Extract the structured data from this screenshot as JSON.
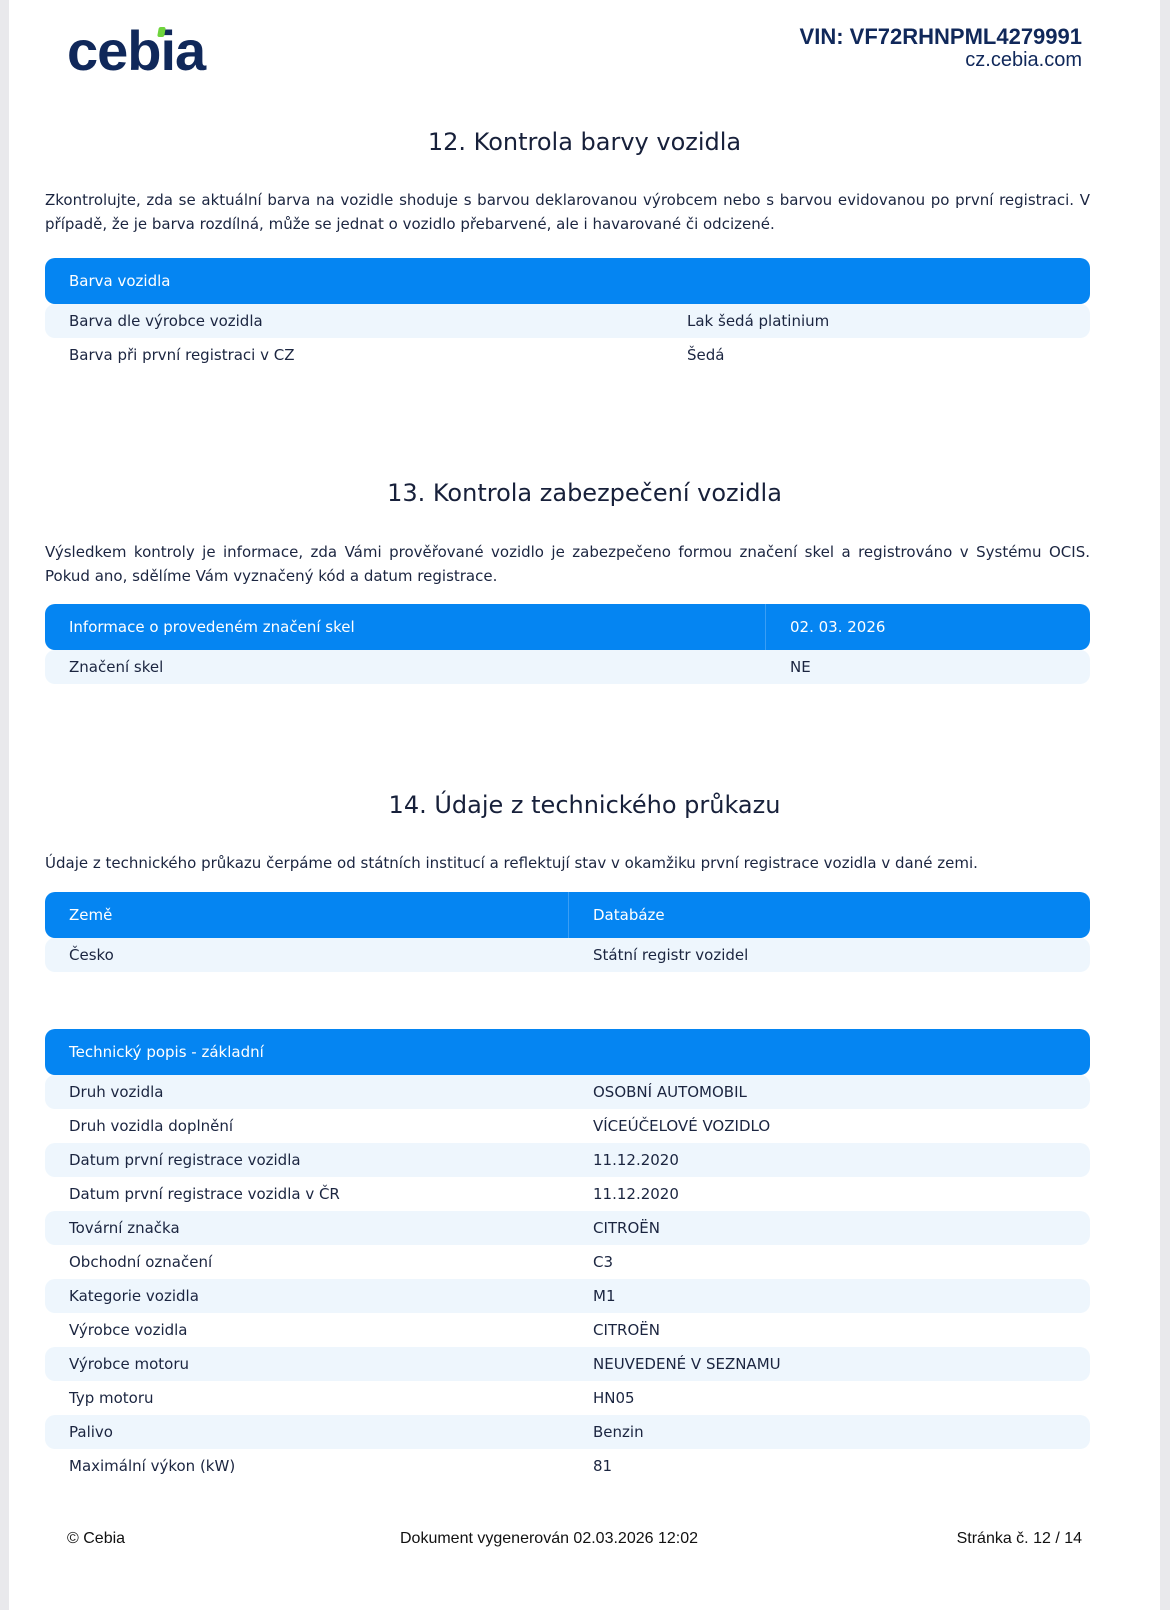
{
  "header": {
    "logo": "cebia",
    "vin": "VIN: VF72RHNPML4279991",
    "website": "cz.cebia.com"
  },
  "section12": {
    "title": "12. Kontrola barvy vozidla",
    "text": "Zkontrolujte, zda se aktuální barva na vozidle shoduje s barvou deklarovanou výrobcem nebo s barvou evidovanou po první registraci. V případě, že je barva rozdílná, může se jednat o vozidlo přebarvené, ale i havarované či odcizené.",
    "table": {
      "header": "Barva vozidla",
      "rows": [
        {
          "label": "Barva dle výrobce vozidla",
          "value": "Lak šedá platinium"
        },
        {
          "label": "Barva při první registraci v CZ",
          "value": "Šedá"
        }
      ]
    }
  },
  "section13": {
    "title": "13. Kontrola zabezpečení vozidla",
    "text": "Výsledkem kontroly je informace, zda Vámi prověřované vozidlo je zabezpečeno formou značení skel a registrováno v Systému OCIS. Pokud ano, sdělíme Vám vyznačený kód a datum registrace.",
    "table": {
      "header": "Informace o provedeném značení skel",
      "header_value": "02. 03. 2026",
      "rows": [
        {
          "label": "Značení skel",
          "value": "NE"
        }
      ]
    }
  },
  "section14": {
    "title": "14. Údaje z technického průkazu",
    "text": "Údaje z technického průkazu čerpáme od státních institucí a reflektují stav v okamžiku první registrace vozidla v dané zemi.",
    "source_table": {
      "headers": [
        "Země",
        "Databáze"
      ],
      "rows": [
        {
          "label": "Česko",
          "value": "Státní registr vozidel"
        }
      ]
    },
    "tech_table": {
      "header": "Technický popis - základní",
      "rows": [
        {
          "label": "Druh vozidla",
          "value": "OSOBNÍ AUTOMOBIL"
        },
        {
          "label": "Druh vozidla doplnění",
          "value": "VÍCEÚČELOVÉ VOZIDLO"
        },
        {
          "label": "Datum první registrace vozidla",
          "value": "11.12.2020"
        },
        {
          "label": "Datum první registrace vozidla v ČR",
          "value": "11.12.2020"
        },
        {
          "label": "Tovární značka",
          "value": "CITROËN"
        },
        {
          "label": "Obchodní označení",
          "value": "C3"
        },
        {
          "label": "Kategorie vozidla",
          "value": "M1"
        },
        {
          "label": "Výrobce vozidla",
          "value": "CITROËN"
        },
        {
          "label": "Výrobce motoru",
          "value": "NEUVEDENÉ V SEZNAMU"
        },
        {
          "label": "Typ motoru",
          "value": "HN05"
        },
        {
          "label": "Palivo",
          "value": "Benzin"
        },
        {
          "label": "Maximální výkon (kW)",
          "value": "81"
        }
      ]
    }
  },
  "footer": {
    "copyright": "© Cebia",
    "generated": "Dokument vygenerován 02.03.2026 12:02",
    "page": "Stránka č. 12 / 14"
  },
  "colors": {
    "accent": "#0585f2",
    "row_alt": "#eef6fd",
    "text": "#1b2540",
    "logo_dot": "#6fd43c"
  }
}
